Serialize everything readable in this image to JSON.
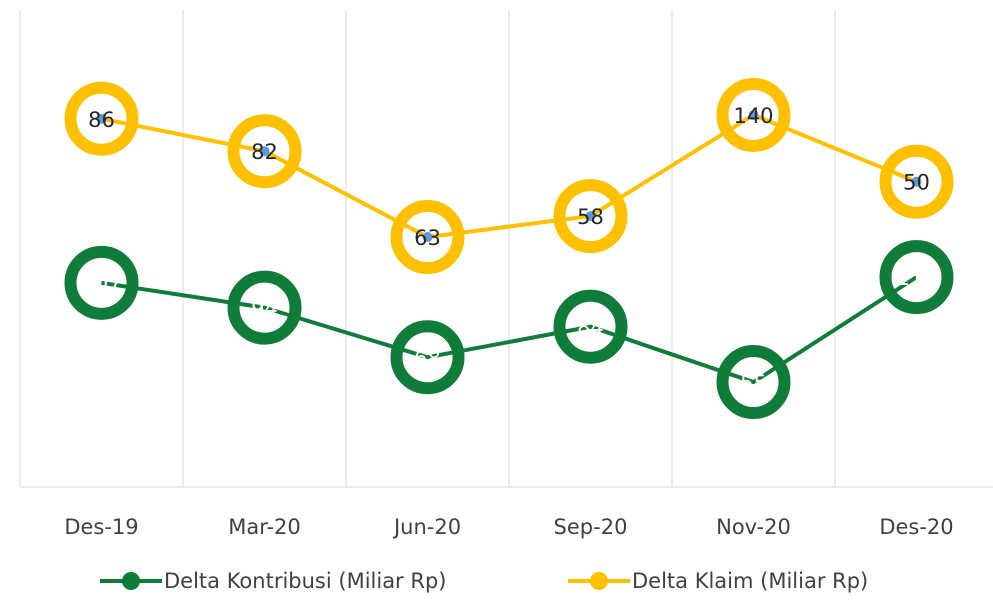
{
  "chart_data": {
    "type": "stacked-line",
    "categories": [
      "Des-19",
      "Mar-20",
      "Jun-20",
      "Sep-20",
      "Nov-20",
      "Des-20"
    ],
    "series": [
      {
        "name": "Delta Kontribusi (Miliar Rp)",
        "color": "#107c3a",
        "values": [
          107,
          94,
          68,
          84,
          55,
          110
        ]
      },
      {
        "name": "Delta Klaim (Miliar Rp)",
        "color": "#ffc000",
        "values": [
          86,
          82,
          63,
          58,
          140,
          50
        ]
      }
    ],
    "ylim": [
      0,
      250
    ],
    "grid": true,
    "legend": "bottom"
  }
}
